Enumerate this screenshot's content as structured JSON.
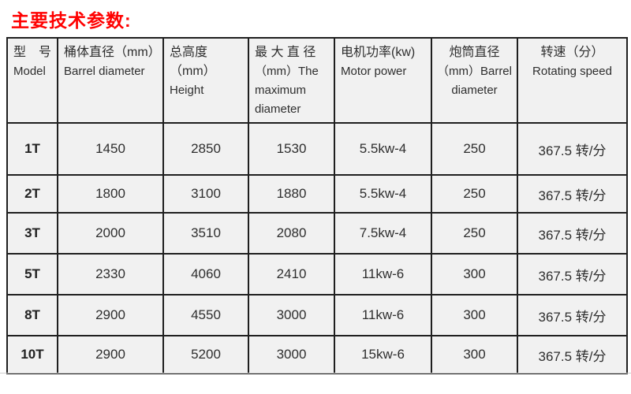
{
  "page": {
    "title": "主要技术参数:"
  },
  "colors": {
    "title_red": "#ff0000",
    "cell_background": "#f1f1f1",
    "border": "#1f1f1f",
    "text": "#2e2e2e"
  },
  "table": {
    "columns": [
      {
        "zh": "型 号",
        "en": "Model"
      },
      {
        "zh": "桶体直径（mm）",
        "en": "Barrel diameter"
      },
      {
        "zh": "总高度（mm）",
        "en": "Height"
      },
      {
        "zh": "最 大 直 径",
        "en": "（mm）The maximum diameter"
      },
      {
        "zh": "电机功率(kw)",
        "en": "Motor power"
      },
      {
        "zh": "炮筒直径",
        "en": "（mm）Barrel diameter"
      },
      {
        "zh": "转速（分）",
        "en": "Rotating speed"
      }
    ],
    "rows": [
      [
        "1T",
        "1450",
        "2850",
        "1530",
        "5.5kw-4",
        "250",
        "367.5 转/分"
      ],
      [
        "2T",
        "1800",
        "3100",
        "1880",
        "5.5kw-4",
        "250",
        "367.5 转/分"
      ],
      [
        "3T",
        "2000",
        "3510",
        "2080",
        "7.5kw-4",
        "250",
        "367.5 转/分"
      ],
      [
        "5T",
        "2330",
        "4060",
        "2410",
        "11kw-6",
        "300",
        "367.5 转/分"
      ],
      [
        "8T",
        "2900",
        "4550",
        "3000",
        "11kw-6",
        "300",
        "367.5 转/分"
      ],
      [
        "10T",
        "2900",
        "5200",
        "3000",
        "15kw-6",
        "300",
        "367.5 转/分"
      ]
    ]
  }
}
